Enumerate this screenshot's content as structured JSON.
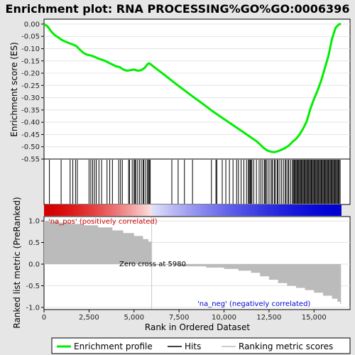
{
  "chart_data": {
    "type": "line",
    "title": "Enrichment plot: RNA PROCESSING%GO%GO:0006396",
    "colors": {
      "enrichment_line": "#00ee00",
      "hit_line": "#000000",
      "metric_fill": "#bbbbbb",
      "positive_color": "#cc0000",
      "negative_color": "#0000cc",
      "zero_cross_line": "#c8c8c8",
      "panel_bg": "#ffffff",
      "page_bg": "#e6e6e6"
    },
    "enrichment_panel": {
      "ylabel": "Enrichment score (ES)",
      "ylim": [
        -0.55,
        0.02
      ],
      "yticks": [
        "0.00",
        "-0.05",
        "-0.10",
        "-0.15",
        "-0.20",
        "-0.25",
        "-0.30",
        "-0.35",
        "-0.40",
        "-0.45",
        "-0.50",
        "-0.55"
      ],
      "ytick_values": [
        0.0,
        -0.05,
        -0.1,
        -0.15,
        -0.2,
        -0.25,
        -0.3,
        -0.35,
        -0.4,
        -0.45,
        -0.5,
        -0.55
      ],
      "series": [
        {
          "x": [
            0,
            200,
            400,
            600,
            800,
            1000,
            1200,
            1400,
            1600,
            1800,
            2000,
            2200,
            2400,
            2600,
            2800,
            3000,
            3200,
            3400,
            3600,
            3800,
            4000,
            4200,
            4400,
            4600,
            4800,
            5000,
            5200,
            5400,
            5600,
            5750,
            5850,
            5950,
            6200,
            6600,
            7000,
            7400,
            7800,
            8200,
            8600,
            9000,
            9400,
            9800,
            10200,
            10600,
            11000,
            11400,
            11800,
            12000,
            12200,
            12400,
            12600,
            12800,
            13000,
            13200,
            13400,
            13600,
            13800,
            14000,
            14200,
            14400,
            14600,
            14800,
            15000,
            15200,
            15400,
            15600,
            15800,
            16000,
            16200,
            16400,
            16500
          ],
          "y": [
            0.0,
            -0.01,
            -0.03,
            -0.045,
            -0.055,
            -0.065,
            -0.072,
            -0.078,
            -0.083,
            -0.09,
            -0.105,
            -0.118,
            -0.125,
            -0.128,
            -0.133,
            -0.14,
            -0.145,
            -0.15,
            -0.158,
            -0.165,
            -0.172,
            -0.175,
            -0.185,
            -0.19,
            -0.188,
            -0.185,
            -0.19,
            -0.188,
            -0.178,
            -0.163,
            -0.16,
            -0.165,
            -0.18,
            -0.202,
            -0.225,
            -0.248,
            -0.27,
            -0.292,
            -0.313,
            -0.335,
            -0.357,
            -0.377,
            -0.397,
            -0.417,
            -0.437,
            -0.457,
            -0.477,
            -0.49,
            -0.505,
            -0.515,
            -0.52,
            -0.522,
            -0.518,
            -0.512,
            -0.505,
            -0.495,
            -0.48,
            -0.468,
            -0.45,
            -0.425,
            -0.395,
            -0.345,
            -0.305,
            -0.27,
            -0.23,
            -0.18,
            -0.13,
            -0.06,
            -0.015,
            0.0,
            0.0
          ]
        }
      ]
    },
    "hits": [
      300,
      950,
      1450,
      1600,
      1750,
      1850,
      2500,
      2600,
      2700,
      2800,
      2900,
      3050,
      3200,
      3500,
      3650,
      3800,
      4150,
      4250,
      4350,
      4700,
      4750,
      4900,
      5000,
      5050,
      5100,
      5200,
      5300,
      5400,
      5500,
      5550,
      5650,
      5750,
      5800,
      5850,
      5900,
      7100,
      7450,
      7800,
      8250,
      9300,
      9550,
      9600,
      9900,
      10100,
      10300,
      10500,
      10700,
      10800,
      10950,
      11100,
      11250,
      11350,
      11400,
      11450,
      11500,
      11550,
      11650,
      11800,
      11950,
      12050,
      12150,
      12250,
      12300,
      12350,
      12450,
      12550,
      12650,
      12700,
      12800,
      12850,
      12950,
      13000,
      13100,
      13200,
      13300,
      13400,
      13450,
      13550,
      13600,
      13700,
      13800,
      13850,
      13900,
      13950,
      14000,
      14050,
      14100,
      14150,
      14200,
      14250,
      14300,
      14350,
      14400,
      14450,
      14500,
      14550,
      14600,
      14650,
      14700,
      14750,
      14800,
      14850,
      14900,
      14950,
      15000,
      15050,
      15100,
      15150,
      15200,
      15250,
      15300,
      15350,
      15400,
      15450,
      15500,
      15550,
      15600,
      15650,
      15700,
      15750,
      15800,
      15850,
      15900,
      15950,
      16000,
      16050,
      16100,
      16150,
      16200,
      16250,
      16300,
      16350,
      16400,
      16450
    ],
    "metric_panel": {
      "ylabel": "Ranked list metric (PreRanked)",
      "ylim": [
        -1.05,
        1.1
      ],
      "yticks": [
        "1.0",
        "0.5",
        "0.0",
        "-0.5",
        "-1.0"
      ],
      "ytick_values": [
        1.0,
        0.5,
        0.0,
        -0.5,
        -1.0
      ],
      "profile_x": [
        0,
        300,
        800,
        1500,
        2200,
        3000,
        3800,
        4400,
        5000,
        5500,
        5800,
        5980,
        6000,
        7500,
        9000,
        10000,
        10800,
        11500,
        12000,
        12500,
        13000,
        13500,
        14000,
        14500,
        15000,
        15500,
        16000,
        16300,
        16450,
        16500
      ],
      "profile_y": [
        1.0,
        0.98,
        0.96,
        0.93,
        0.9,
        0.85,
        0.78,
        0.72,
        0.65,
        0.58,
        0.52,
        0.48,
        -0.02,
        -0.05,
        -0.08,
        -0.11,
        -0.15,
        -0.2,
        -0.28,
        -0.36,
        -0.44,
        -0.5,
        -0.55,
        -0.6,
        -0.66,
        -0.73,
        -0.8,
        -0.87,
        -0.92,
        -0.97
      ],
      "zero_cross": 5980,
      "zero_cross_label": "Zero cross at 5980",
      "pos_label": "'na_pos' (positively correlated)",
      "neg_label": "'na_neg' (negatively correlated)"
    },
    "x_axis": {
      "xlabel": "Rank in Ordered Dataset",
      "xlim": [
        0,
        17000
      ],
      "xticks": [
        "0",
        "2,500",
        "5,000",
        "7,500",
        "10,000",
        "12,500",
        "15,000"
      ],
      "xtick_values": [
        0,
        2500,
        5000,
        7500,
        10000,
        12500,
        15000
      ],
      "max_rank": 16500
    },
    "legend": {
      "position": "bottom",
      "items": [
        {
          "label": "Enrichment profile",
          "kind": "line",
          "color": "#00ee00"
        },
        {
          "label": "Hits",
          "kind": "line",
          "color": "#000000"
        },
        {
          "label": "Ranking metric scores",
          "kind": "line",
          "color": "#bbbbbb"
        }
      ]
    }
  }
}
